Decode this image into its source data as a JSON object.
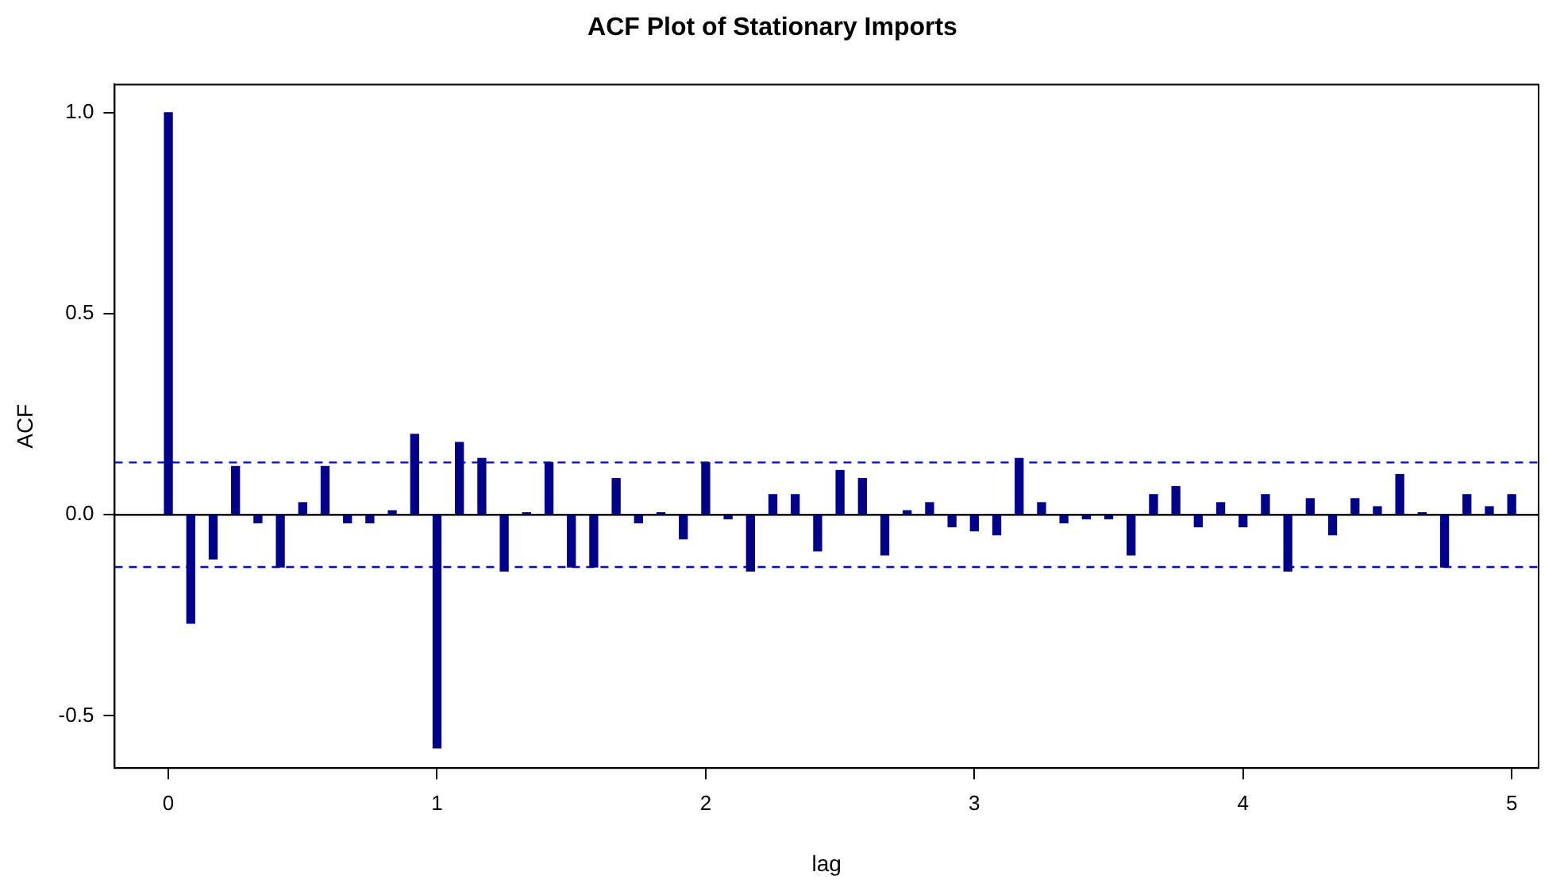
{
  "chart_data": {
    "type": "bar",
    "title": "ACF Plot of Stationary Imports",
    "xlabel": "lag",
    "ylabel": "ACF",
    "x": [
      0,
      0.0833,
      0.1667,
      0.25,
      0.3333,
      0.4167,
      0.5,
      0.5833,
      0.6667,
      0.75,
      0.8333,
      0.9167,
      1,
      1.0833,
      1.1667,
      1.25,
      1.3333,
      1.4167,
      1.5,
      1.5833,
      1.6667,
      1.75,
      1.8333,
      1.9167,
      2,
      2.0833,
      2.1667,
      2.25,
      2.3333,
      2.4167,
      2.5,
      2.5833,
      2.6667,
      2.75,
      2.8333,
      2.9167,
      3,
      3.0833,
      3.1667,
      3.25,
      3.3333,
      3.4167,
      3.5,
      3.5833,
      3.6667,
      3.75,
      3.8333,
      3.9167,
      4,
      4.0833,
      4.1667,
      4.25,
      4.3333,
      4.4167,
      4.5,
      4.5833,
      4.6667,
      4.75,
      4.8333,
      4.9167,
      5
    ],
    "series": [
      {
        "color": "#00008b",
        "values": [
          1.0,
          -0.27,
          -0.11,
          0.12,
          -0.02,
          -0.13,
          0.03,
          0.12,
          -0.02,
          -0.02,
          0.01,
          0.2,
          -0.58,
          0.18,
          0.14,
          -0.14,
          0.005,
          0.13,
          -0.13,
          -0.13,
          0.09,
          -0.02,
          0.005,
          -0.06,
          0.13,
          -0.01,
          -0.14,
          0.05,
          0.05,
          -0.09,
          0.11,
          0.09,
          -0.1,
          0.01,
          0.03,
          -0.03,
          -0.04,
          -0.05,
          0.14,
          0.03,
          -0.02,
          -0.01,
          -0.01,
          -0.1,
          0.05,
          0.07,
          -0.03,
          0.03,
          -0.03,
          0.05,
          -0.14,
          0.04,
          -0.05,
          0.04,
          0.02,
          0.1,
          0.005,
          -0.13,
          0.05,
          0.02,
          0.05
        ]
      }
    ],
    "xlim": [
      -0.2,
      5.1
    ],
    "xticks": [
      0,
      1,
      2,
      3,
      4,
      5
    ],
    "ylim": [
      -0.63,
      1.07
    ],
    "yticks": [
      -0.5,
      {
        "value": 0,
        "label": "0.0"
      },
      0.5,
      {
        "value": 1,
        "label": "1.0"
      }
    ],
    "ref_lines": [
      {
        "axis": "y",
        "value": 0,
        "color": "#000000",
        "line_style": "solid"
      },
      {
        "axis": "y",
        "value": 0.13,
        "color": "#0000ff",
        "line_style": "dashed"
      },
      {
        "axis": "y",
        "value": -0.13,
        "color": "#0000ff",
        "line_style": "dashed"
      }
    ],
    "grid": false,
    "legend": false
  }
}
